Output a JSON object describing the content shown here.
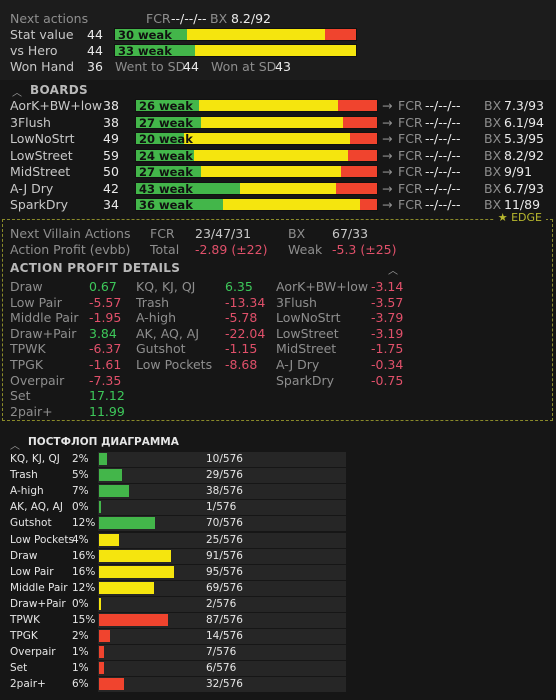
{
  "colors": {
    "green": "#43b64a",
    "yellow": "#f5e50e",
    "red": "#f0442e"
  },
  "header": {
    "next_actions": "Next actions",
    "fcr_label": "FCR",
    "fcr_value": "--/--/--",
    "bx_label": "BX",
    "bx_value": "8.2/92",
    "stat_label": "Stat value",
    "stat_value": "44",
    "stat_bar": {
      "text": "30 weak",
      "green": 30,
      "yellow": 57,
      "red": 13
    },
    "hero_label": "vs Hero",
    "hero_value": "44",
    "hero_bar": {
      "text": "33 weak",
      "green": 33,
      "yellow": 67,
      "red": 0
    },
    "won_label": "Won Hand",
    "won_value": "36",
    "wtsd_label": "Went to SD",
    "wtsd_value": "44",
    "wsd_label": "Won at SD",
    "wsd_value": "43"
  },
  "boards": {
    "title": "BOARDS",
    "rows": [
      {
        "name": "AorK+BW+low",
        "value": "38",
        "bar_text": "26 weak",
        "green": 26,
        "yellow": 58,
        "red": 16,
        "arrow": "→",
        "fcr_label": "FCR",
        "fcr": "--/--/--",
        "bx_label": "BX",
        "bx": "7.3/93"
      },
      {
        "name": "3Flush",
        "value": "38",
        "bar_text": "27 weak",
        "green": 27,
        "yellow": 59,
        "red": 14,
        "arrow": "→",
        "fcr_label": "FCR",
        "fcr": "--/--/--",
        "bx_label": "BX",
        "bx": "6.1/94"
      },
      {
        "name": "LowNoStrt",
        "value": "49",
        "bar_text": "20 weak",
        "green": 20,
        "yellow": 69,
        "red": 11,
        "arrow": "→",
        "fcr_label": "FCR",
        "fcr": "--/--/--",
        "bx_label": "BX",
        "bx": "5.3/95"
      },
      {
        "name": "LowStreet",
        "value": "59",
        "bar_text": "24 weak",
        "green": 24,
        "yellow": 64,
        "red": 12,
        "arrow": "→",
        "fcr_label": "FCR",
        "fcr": "--/--/--",
        "bx_label": "BX",
        "bx": "8.2/92"
      },
      {
        "name": "MidStreet",
        "value": "50",
        "bar_text": "27 weak",
        "green": 27,
        "yellow": 58,
        "red": 15,
        "arrow": "→",
        "fcr_label": "FCR",
        "fcr": "--/--/--",
        "bx_label": "BX",
        "bx": "9/91"
      },
      {
        "name": "A-J Dry",
        "value": "42",
        "bar_text": "43 weak",
        "green": 43,
        "yellow": 40,
        "red": 17,
        "arrow": "→",
        "fcr_label": "FCR",
        "fcr": "--/--/--",
        "bx_label": "BX",
        "bx": "6.7/93"
      },
      {
        "name": "SparkDry",
        "value": "34",
        "bar_text": "36 weak",
        "green": 36,
        "yellow": 57,
        "red": 7,
        "arrow": "→",
        "fcr_label": "FCR",
        "fcr": "--/--/--",
        "bx_label": "BX",
        "bx": "11/89"
      }
    ]
  },
  "villain": {
    "edge_label": "★ EDGE",
    "nva_label": "Next Villain Actions",
    "fcr_label": "FCR",
    "fcr": "23/47/31",
    "bx_label": "BX",
    "bx": "67/33",
    "ap_label": "Action Profit (evbb)",
    "total_label": "Total",
    "total": "-2.89 (±22)",
    "weak_label": "Weak",
    "weak": "-5.3 (±25)"
  },
  "details": {
    "title": "ACTION PROFIT DETAILS",
    "col1": [
      {
        "name": "Draw",
        "value": "0.67",
        "pos": true
      },
      {
        "name": "Low Pair",
        "value": "-5.57",
        "pos": false
      },
      {
        "name": "Middle Pair",
        "value": "-1.95",
        "pos": false
      },
      {
        "name": "Draw+Pair",
        "value": "3.84",
        "pos": true
      },
      {
        "name": "TPWK",
        "value": "-6.37",
        "pos": false
      },
      {
        "name": "TPGK",
        "value": "-1.61",
        "pos": false
      },
      {
        "name": "Overpair",
        "value": "-7.35",
        "pos": false
      },
      {
        "name": "Set",
        "value": "17.12",
        "pos": true
      },
      {
        "name": "2pair+",
        "value": "11.99",
        "pos": true
      }
    ],
    "col2": [
      {
        "name": "KQ, KJ, QJ",
        "value": "6.35",
        "pos": true
      },
      {
        "name": "Trash",
        "value": "-13.34",
        "pos": false
      },
      {
        "name": "A-high",
        "value": "-5.78",
        "pos": false
      },
      {
        "name": "AK, AQ, AJ",
        "value": "-22.04",
        "pos": false
      },
      {
        "name": "Gutshot",
        "value": "-1.15",
        "pos": false
      },
      {
        "name": "Low Pockets",
        "value": "-8.68",
        "pos": false
      }
    ],
    "col3": [
      {
        "name": "AorK+BW+low",
        "value": "-3.14",
        "pos": false
      },
      {
        "name": "3Flush",
        "value": "-3.57",
        "pos": false
      },
      {
        "name": "LowNoStrt",
        "value": "-3.79",
        "pos": false
      },
      {
        "name": "LowStreet",
        "value": "-3.19",
        "pos": false
      },
      {
        "name": "MidStreet",
        "value": "-1.75",
        "pos": false
      },
      {
        "name": "A-J Dry",
        "value": "-0.34",
        "pos": false
      },
      {
        "name": "SparkDry",
        "value": "-0.75",
        "pos": false
      }
    ]
  },
  "diagram": {
    "title": "ПОСТФЛОП ДИАГРАММА",
    "rows": [
      {
        "name": "KQ, KJ, QJ",
        "pct": "2%",
        "frac": 0.017,
        "color": "green",
        "count": "10/576"
      },
      {
        "name": "Trash",
        "pct": "5%",
        "frac": 0.05,
        "color": "green",
        "count": "29/576"
      },
      {
        "name": "A-high",
        "pct": "7%",
        "frac": 0.066,
        "color": "green",
        "count": "38/576"
      },
      {
        "name": "AK, AQ, AJ",
        "pct": "0%",
        "frac": 0.002,
        "color": "green",
        "count": "1/576"
      },
      {
        "name": "Gutshot",
        "pct": "12%",
        "frac": 0.122,
        "color": "green",
        "count": "70/576"
      },
      {
        "name": "Low Pockets",
        "pct": "4%",
        "frac": 0.043,
        "color": "yellow",
        "count": "25/576"
      },
      {
        "name": "Draw",
        "pct": "16%",
        "frac": 0.158,
        "color": "yellow",
        "count": "91/576"
      },
      {
        "name": "Low Pair",
        "pct": "16%",
        "frac": 0.165,
        "color": "yellow",
        "count": "95/576"
      },
      {
        "name": "Middle Pair",
        "pct": "12%",
        "frac": 0.12,
        "color": "yellow",
        "count": "69/576"
      },
      {
        "name": "Draw+Pair",
        "pct": "0%",
        "frac": 0.003,
        "color": "yellow",
        "count": "2/576"
      },
      {
        "name": "TPWK",
        "pct": "15%",
        "frac": 0.151,
        "color": "red",
        "count": "87/576"
      },
      {
        "name": "TPGK",
        "pct": "2%",
        "frac": 0.024,
        "color": "red",
        "count": "14/576"
      },
      {
        "name": "Overpair",
        "pct": "1%",
        "frac": 0.012,
        "color": "red",
        "count": "7/576"
      },
      {
        "name": "Set",
        "pct": "1%",
        "frac": 0.01,
        "color": "red",
        "count": "6/576"
      },
      {
        "name": "2pair+",
        "pct": "6%",
        "frac": 0.056,
        "color": "red",
        "count": "32/576"
      }
    ]
  }
}
